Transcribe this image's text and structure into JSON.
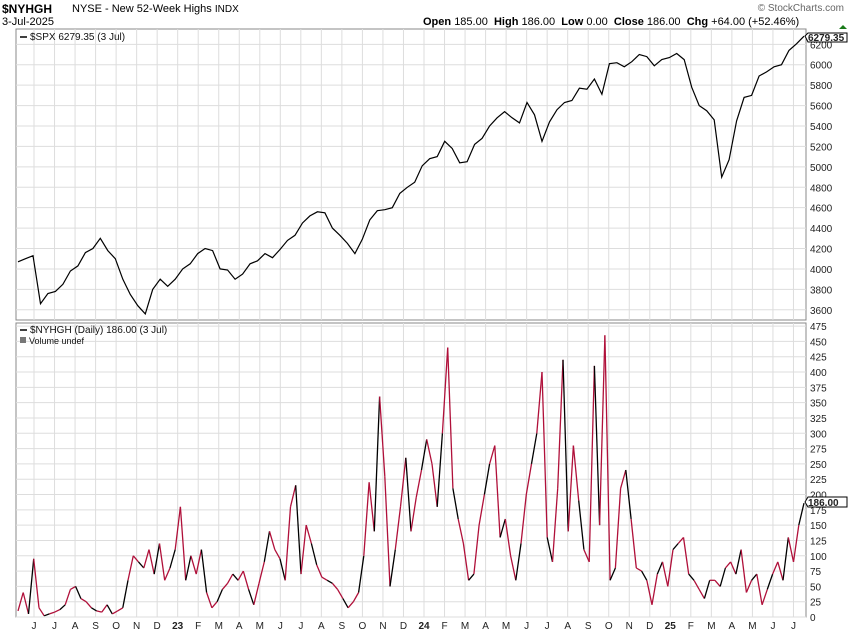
{
  "header": {
    "symbol": "$NYHGH",
    "description": "NYSE - New 52-Week Highs",
    "exchange_tag": "INDX",
    "brand": "© StockCharts.com",
    "date": "3-Jul-2025",
    "open_label": "Open",
    "open_value": "185.00",
    "high_label": "High",
    "high_value": "186.00",
    "low_label": "Low",
    "low_value": "0.00",
    "close_label": "Close",
    "close_value": "186.00",
    "chg_label": "Chg",
    "chg_value": "+64.00 (+52.46%)"
  },
  "colors": {
    "spx_line": "#000000",
    "nyhgh_up": "#000000",
    "nyhgh_down": "#b0103a",
    "grid": "#dddddd",
    "last_value_box": "#000000"
  },
  "chart_data": [
    {
      "type": "line",
      "panel": "upper",
      "legend": "$SPX 6279.35 (3 Jul)",
      "last_value_label": "6279.35",
      "ylim": [
        3500,
        6350
      ],
      "yticks": [
        3600,
        3800,
        4000,
        4200,
        4400,
        4600,
        4800,
        5000,
        5200,
        5400,
        5600,
        5800,
        6000,
        6200
      ],
      "grid": true,
      "series": [
        {
          "values": [
            4070,
            4100,
            4130,
            3660,
            3760,
            3780,
            3850,
            3980,
            4030,
            4160,
            4200,
            4300,
            4180,
            4100,
            3900,
            3750,
            3640,
            3560,
            3800,
            3900,
            3830,
            3900,
            4000,
            4050,
            4150,
            4200,
            4180,
            4000,
            3990,
            3900,
            3950,
            4050,
            4080,
            4150,
            4110,
            4190,
            4280,
            4330,
            4450,
            4520,
            4560,
            4550,
            4400,
            4330,
            4250,
            4150,
            4290,
            4480,
            4570,
            4580,
            4600,
            4740,
            4800,
            4850,
            5010,
            5080,
            5100,
            5250,
            5180,
            5040,
            5050,
            5220,
            5280,
            5400,
            5480,
            5540,
            5480,
            5430,
            5630,
            5510,
            5250,
            5440,
            5560,
            5630,
            5650,
            5770,
            5760,
            5860,
            5710,
            6010,
            6020,
            5980,
            6030,
            6100,
            6080,
            5990,
            6050,
            6070,
            6110,
            6050,
            5780,
            5600,
            5550,
            5460,
            4900,
            5070,
            5450,
            5680,
            5700,
            5890,
            5930,
            5980,
            6000,
            6140,
            6205,
            6279
          ]
        }
      ]
    },
    {
      "type": "line",
      "panel": "lower",
      "legend": "$NYHGH (Daily) 186.00 (3 Jul)",
      "legend_sub": "Volume undef",
      "last_value_label": "186.00",
      "ylim": [
        0,
        480
      ],
      "yticks": [
        0,
        25,
        50,
        75,
        100,
        125,
        150,
        175,
        200,
        225,
        250,
        275,
        300,
        325,
        350,
        375,
        400,
        425,
        450,
        475
      ],
      "grid": true,
      "x_labels": [
        "J",
        "J",
        "A",
        "S",
        "O",
        "N",
        "D",
        "23",
        "F",
        "M",
        "A",
        "M",
        "J",
        "J",
        "A",
        "S",
        "O",
        "N",
        "D",
        "24",
        "F",
        "M",
        "A",
        "M",
        "J",
        "J",
        "A",
        "S",
        "O",
        "N",
        "D",
        "25",
        "F",
        "M",
        "A",
        "M",
        "J",
        "J"
      ],
      "series": [
        {
          "name": "$NYHGH",
          "values": [
            10,
            40,
            5,
            95,
            15,
            2,
            5,
            8,
            12,
            20,
            45,
            50,
            30,
            25,
            15,
            10,
            8,
            20,
            5,
            10,
            15,
            60,
            100,
            90,
            80,
            110,
            70,
            120,
            60,
            80,
            110,
            180,
            60,
            100,
            70,
            110,
            40,
            15,
            25,
            45,
            55,
            70,
            60,
            75,
            45,
            20,
            55,
            90,
            140,
            110,
            95,
            60,
            180,
            215,
            70,
            150,
            120,
            85,
            65,
            60,
            55,
            45,
            30,
            15,
            25,
            40,
            100,
            220,
            140,
            360,
            230,
            50,
            110,
            180,
            260,
            140,
            195,
            240,
            290,
            250,
            180,
            300,
            440,
            210,
            160,
            120,
            60,
            70,
            150,
            200,
            250,
            280,
            130,
            160,
            100,
            60,
            120,
            200,
            250,
            300,
            400,
            130,
            90,
            210,
            420,
            140,
            280,
            190,
            110,
            90,
            410,
            150,
            460,
            60,
            80,
            210,
            240,
            160,
            80,
            75,
            60,
            20,
            70,
            90,
            50,
            110,
            120,
            130,
            70,
            60,
            45,
            30,
            60,
            60,
            50,
            80,
            90,
            70,
            110,
            40,
            60,
            70,
            20,
            45,
            70,
            90,
            60,
            130,
            90,
            150,
            186
          ]
        }
      ]
    }
  ]
}
